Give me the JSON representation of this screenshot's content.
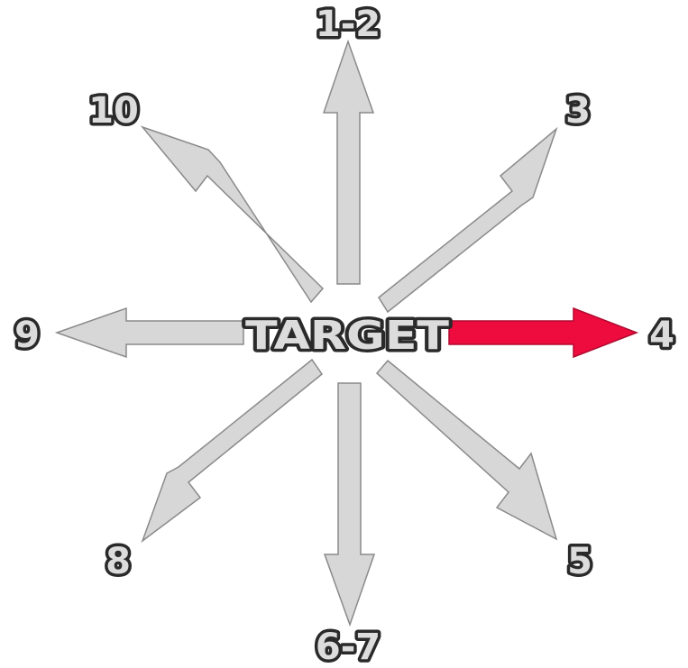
{
  "center_label": "TARGET",
  "directions": [
    {
      "id": "1-2",
      "label": "1-2",
      "highlighted": false
    },
    {
      "id": "3",
      "label": "3",
      "highlighted": false
    },
    {
      "id": "4",
      "label": "4",
      "highlighted": true
    },
    {
      "id": "5",
      "label": "5",
      "highlighted": false
    },
    {
      "id": "6-7",
      "label": "6-7",
      "highlighted": false
    },
    {
      "id": "8",
      "label": "8",
      "highlighted": false
    },
    {
      "id": "9",
      "label": "9",
      "highlighted": false
    },
    {
      "id": "10",
      "label": "10",
      "highlighted": false
    }
  ],
  "colors": {
    "arrow_default": "#d7d7d7",
    "arrow_outline": "#8a8a8a",
    "arrow_highlight": "#ee0b3e",
    "label_fill": "#dcdcdc",
    "label_outline": "#2a2a2a"
  }
}
